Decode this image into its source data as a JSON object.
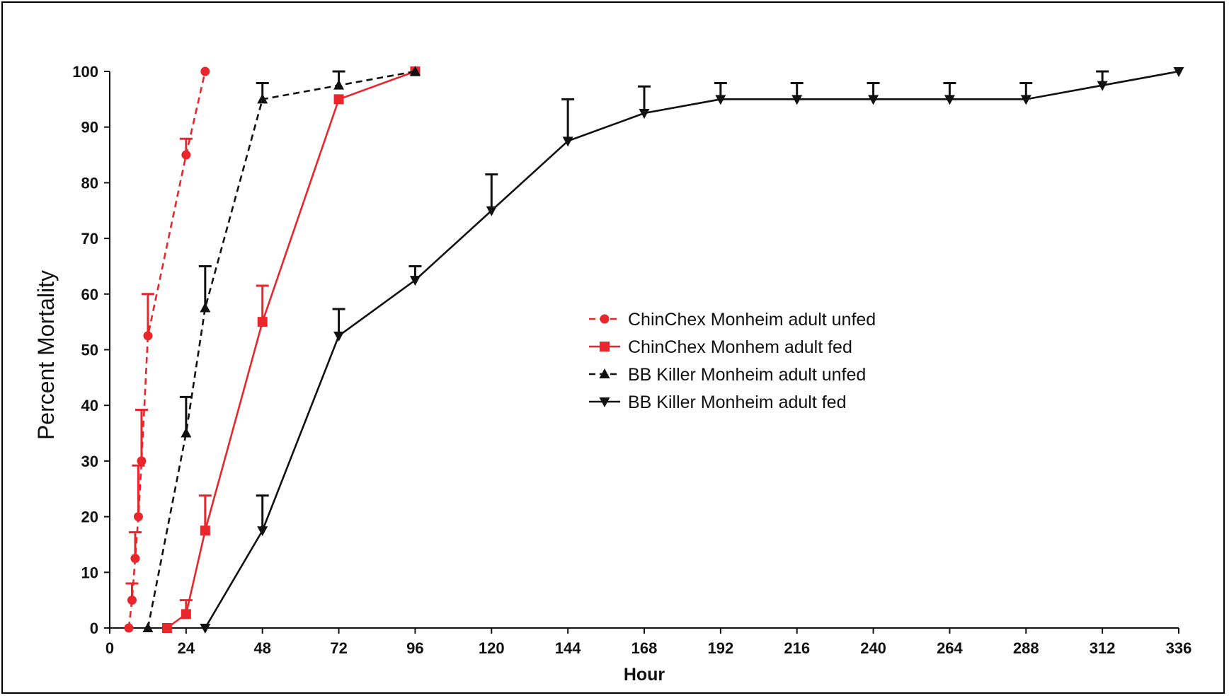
{
  "chart_data": {
    "type": "line",
    "xlabel": "Hour",
    "ylabel": "Percent Mortality",
    "xlim": [
      0,
      336
    ],
    "ylim": [
      0,
      100
    ],
    "xticks": [
      0,
      24,
      48,
      72,
      96,
      120,
      144,
      168,
      192,
      216,
      240,
      264,
      288,
      312,
      336
    ],
    "yticks": [
      0,
      10,
      20,
      30,
      40,
      50,
      60,
      70,
      80,
      90,
      100
    ],
    "grid": false,
    "legend_position": "center-right",
    "series": [
      {
        "name": "ChinChex Monheim adult unfed",
        "color": "#e8262b",
        "line_style": "dashed",
        "marker": "circle",
        "points": [
          {
            "x": 6,
            "y": 0,
            "err": 0
          },
          {
            "x": 7,
            "y": 5,
            "err": 3
          },
          {
            "x": 8,
            "y": 12.5,
            "err": 4.7
          },
          {
            "x": 9,
            "y": 20,
            "err": 9.2
          },
          {
            "x": 10,
            "y": 30,
            "err": 9.2
          },
          {
            "x": 12,
            "y": 52.5,
            "err": 7.5
          },
          {
            "x": 24,
            "y": 85,
            "err": 2.9
          },
          {
            "x": 30,
            "y": 100,
            "err": 0
          }
        ]
      },
      {
        "name": "ChinChex Monhem adult fed",
        "color": "#e8262b",
        "line_style": "solid",
        "marker": "square",
        "points": [
          {
            "x": 18,
            "y": 0,
            "err": 0
          },
          {
            "x": 24,
            "y": 2.5,
            "err": 2.5
          },
          {
            "x": 30,
            "y": 17.5,
            "err": 6.3
          },
          {
            "x": 48,
            "y": 55,
            "err": 6.5
          },
          {
            "x": 72,
            "y": 95,
            "err": 0
          },
          {
            "x": 96,
            "y": 100,
            "err": 0
          }
        ]
      },
      {
        "name": "BB Killer Monheim adult unfed",
        "color": "#111111",
        "line_style": "dashed",
        "marker": "triangle-up",
        "points": [
          {
            "x": 12,
            "y": 0,
            "err": 0
          },
          {
            "x": 24,
            "y": 35,
            "err": 6.5
          },
          {
            "x": 30,
            "y": 57.5,
            "err": 7.5
          },
          {
            "x": 48,
            "y": 95,
            "err": 2.9
          },
          {
            "x": 72,
            "y": 97.5,
            "err": 2.5
          },
          {
            "x": 96,
            "y": 100,
            "err": 0
          }
        ]
      },
      {
        "name": "BB Killer Monheim adult fed",
        "color": "#111111",
        "line_style": "solid",
        "marker": "triangle-down",
        "points": [
          {
            "x": 30,
            "y": 0,
            "err": 0
          },
          {
            "x": 48,
            "y": 17.5,
            "err": 6.3
          },
          {
            "x": 72,
            "y": 52.5,
            "err": 4.8
          },
          {
            "x": 96,
            "y": 62.5,
            "err": 2.5
          },
          {
            "x": 120,
            "y": 75,
            "err": 6.5
          },
          {
            "x": 144,
            "y": 87.5,
            "err": 7.5
          },
          {
            "x": 168,
            "y": 92.5,
            "err": 4.8
          },
          {
            "x": 192,
            "y": 95,
            "err": 2.9
          },
          {
            "x": 216,
            "y": 95,
            "err": 2.9
          },
          {
            "x": 240,
            "y": 95,
            "err": 2.9
          },
          {
            "x": 264,
            "y": 95,
            "err": 2.9
          },
          {
            "x": 288,
            "y": 95,
            "err": 2.9
          },
          {
            "x": 312,
            "y": 97.5,
            "err": 2.5
          },
          {
            "x": 336,
            "y": 100,
            "err": 0
          }
        ]
      }
    ]
  }
}
